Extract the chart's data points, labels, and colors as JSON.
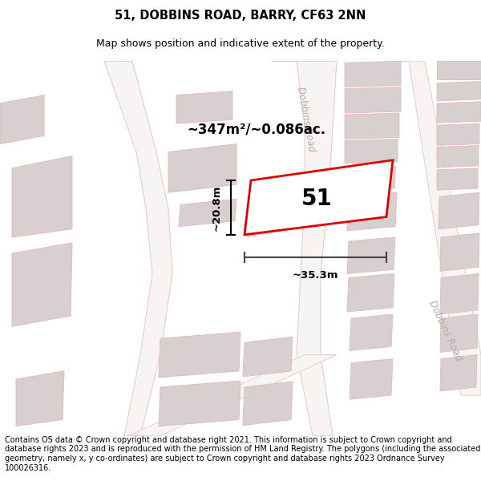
{
  "title": "51, DOBBINS ROAD, BARRY, CF63 2NN",
  "subtitle": "Map shows position and indicative extent of the property.",
  "footer": "Contains OS data © Crown copyright and database right 2021. This information is subject to Crown copyright and database rights 2023 and is reproduced with the permission of HM Land Registry. The polygons (including the associated geometry, namely x, y co-ordinates) are subject to Crown copyright and database rights 2023 Ordnance Survey 100026316.",
  "area_label": "~347m²/~0.086ac.",
  "width_label": "~35.3m",
  "height_label": "~20.8m",
  "number_label": "51",
  "map_bg": "#f7f4f4",
  "road_color": "#f0c8c8",
  "road_fill": "#f7f4f4",
  "building_color": "#d8d0d0",
  "building_edge": "#e8b8b8",
  "highlight_color": "#dd0000",
  "road_label_color": "#b8aaaa",
  "title_fontsize": 10.5,
  "subtitle_fontsize": 9,
  "footer_fontsize": 7.0
}
